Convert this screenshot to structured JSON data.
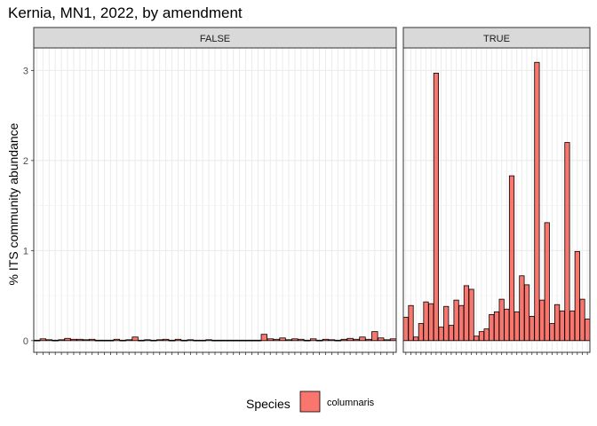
{
  "chart_data": {
    "type": "bar",
    "title": "Kernia, MN1, 2022, by amendment",
    "xlabel": "",
    "ylabel": "% ITS community abundance",
    "ylim": [
      -0.13,
      3.25
    ],
    "yticks": [
      0,
      1,
      2,
      3
    ],
    "y_tick_labels": [
      "0",
      "1",
      "2",
      "3"
    ],
    "x_tick_labels_shown": false,
    "grid": true,
    "legend": {
      "title": "Species",
      "position": "bottom",
      "entries": [
        {
          "label": "columnaris",
          "color": "#f8766d"
        }
      ]
    },
    "panels": [
      {
        "label": "FALSE",
        "series": [
          {
            "name": "columnaris",
            "color": "#f8766d",
            "values": [
              0.005,
              0.02,
              0.01,
              0.005,
              0.01,
              0.025,
              0.015,
              0.015,
              0.01,
              0.015,
              0.005,
              0.005,
              0.005,
              0.015,
              0.005,
              0.01,
              0.04,
              0.005,
              0.01,
              0.005,
              0.01,
              0.015,
              0.005,
              0.015,
              0.005,
              0.01,
              0.005,
              0.005,
              0.01,
              0.005,
              0.005,
              0.005,
              0.005,
              0.005,
              0.005,
              0.005,
              0.005,
              0.07,
              0.02,
              0.015,
              0.03,
              0.01,
              0.02,
              0.015,
              0.005,
              0.02,
              0.005,
              0.015,
              0.01,
              0.005,
              0.015,
              0.025,
              0.015,
              0.04,
              0.015,
              0.1,
              0.03,
              0.01,
              0.02
            ]
          }
        ]
      },
      {
        "label": "TRUE",
        "series": [
          {
            "name": "columnaris",
            "color": "#f8766d",
            "values": [
              0.26,
              0.39,
              0.04,
              0.19,
              0.43,
              0.41,
              2.97,
              0.15,
              0.38,
              0.17,
              0.45,
              0.39,
              0.61,
              0.57,
              0.05,
              0.1,
              0.13,
              0.29,
              0.32,
              0.46,
              0.35,
              1.83,
              0.32,
              0.72,
              0.62,
              0.27,
              3.09,
              0.45,
              1.31,
              0.19,
              0.4,
              0.33,
              2.2,
              0.33,
              0.99,
              0.46,
              0.24
            ]
          }
        ]
      }
    ]
  }
}
